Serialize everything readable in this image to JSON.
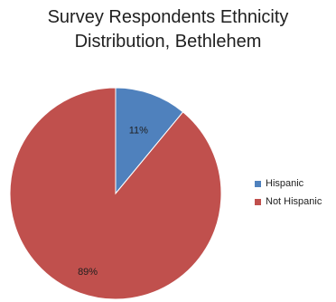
{
  "chart_data": {
    "type": "pie",
    "title_lines": [
      "Survey Respondents Ethnicity",
      "Distribution, Bethlehem"
    ],
    "series": [
      {
        "name": "Hispanic",
        "value": 11,
        "label": "11%",
        "color": "#4f81bd"
      },
      {
        "name": "Not Hispanic",
        "value": 89,
        "label": "89%",
        "color": "#c0504d"
      }
    ],
    "legend_position": "right"
  }
}
